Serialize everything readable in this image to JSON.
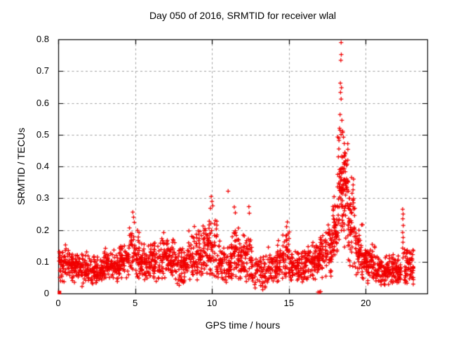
{
  "colors": {
    "background": "#ffffff",
    "axis": "#000000",
    "grid": "#a0a0a0",
    "marker": "#f10000",
    "text": "#000000"
  },
  "chart_data": {
    "type": "scatter",
    "title": "Day 050 of 2016, SRMTID for receiver wlal",
    "xlabel": "GPS time / hours",
    "ylabel": "SRMTID / TECUs",
    "xlim": [
      0,
      24
    ],
    "ylim": [
      0,
      0.8
    ],
    "grid": true,
    "legend": "none",
    "marker": {
      "shape": "plus",
      "size": 7,
      "color": "#f10000"
    },
    "x_ticks": {
      "values": [
        0,
        5,
        10,
        15,
        20
      ],
      "labels": [
        "0",
        "5",
        "10",
        "15",
        "20"
      ]
    },
    "y_ticks": {
      "values": [
        0,
        0.1,
        0.2,
        0.3,
        0.4,
        0.5,
        0.6,
        0.7,
        0.8
      ],
      "labels": [
        "0",
        "0.1",
        "0.2",
        "0.3",
        "0.4",
        "0.5",
        "0.6",
        "0.7",
        "0.8"
      ]
    },
    "grid_lines": {
      "x_values": [
        5,
        10,
        15,
        20
      ],
      "y_values": [
        0.1,
        0.2,
        0.3,
        0.4,
        0.5,
        0.6,
        0.7
      ],
      "style": "dashed"
    },
    "origin_marker": {
      "shape": "filled-square",
      "x": 0.08,
      "y": 0.003
    },
    "notable_points": [
      [
        18.4,
        0.79
      ],
      [
        18.41,
        0.752
      ],
      [
        18.38,
        0.734
      ],
      [
        18.35,
        0.662
      ],
      [
        18.42,
        0.648
      ],
      [
        18.36,
        0.633
      ],
      [
        18.4,
        0.612
      ],
      [
        18.33,
        0.563
      ],
      [
        18.45,
        0.545
      ],
      [
        18.3,
        0.52
      ],
      [
        18.5,
        0.507
      ],
      [
        18.55,
        0.492
      ],
      [
        18.6,
        0.472
      ],
      [
        18.25,
        0.455
      ],
      [
        18.65,
        0.443
      ],
      [
        18.22,
        0.43
      ],
      [
        18.7,
        0.418
      ],
      [
        9.95,
        0.305
      ],
      [
        10.0,
        0.29
      ],
      [
        10.05,
        0.276
      ],
      [
        9.9,
        0.268
      ],
      [
        11.05,
        0.322
      ],
      [
        11.45,
        0.272
      ],
      [
        11.52,
        0.254
      ],
      [
        12.4,
        0.273
      ],
      [
        12.43,
        0.253
      ],
      [
        4.85,
        0.256
      ],
      [
        4.9,
        0.24
      ],
      [
        4.95,
        0.224
      ],
      [
        14.9,
        0.225
      ],
      [
        14.85,
        0.21
      ],
      [
        22.4,
        0.265
      ],
      [
        22.43,
        0.25
      ],
      [
        22.41,
        0.235
      ],
      [
        22.44,
        0.214
      ],
      [
        22.4,
        0.192
      ],
      [
        22.43,
        0.176
      ],
      [
        22.42,
        0.161
      ],
      [
        22.4,
        0.143
      ],
      [
        22.45,
        0.126
      ],
      [
        22.42,
        0.112
      ],
      [
        16.9,
        0.004
      ],
      [
        17.0,
        0.004
      ],
      [
        17.06,
        0.006
      ],
      [
        1.55,
        0.022
      ],
      [
        1.62,
        0.033
      ],
      [
        13.3,
        0.012
      ],
      [
        13.45,
        0.018
      ]
    ],
    "density_bands": {
      "columns": [
        "x_start",
        "x_end",
        "n_points",
        "y_center",
        "y_spread"
      ],
      "rows": [
        [
          0.05,
          1.0,
          95,
          0.095,
          0.032
        ],
        [
          1.0,
          2.0,
          95,
          0.082,
          0.027
        ],
        [
          2.0,
          3.0,
          95,
          0.072,
          0.026
        ],
        [
          3.0,
          4.0,
          95,
          0.09,
          0.03
        ],
        [
          4.0,
          4.6,
          55,
          0.105,
          0.036
        ],
        [
          4.6,
          5.3,
          65,
          0.125,
          0.048
        ],
        [
          5.3,
          6.0,
          65,
          0.095,
          0.034
        ],
        [
          6.0,
          6.6,
          55,
          0.105,
          0.04
        ],
        [
          6.6,
          7.6,
          95,
          0.115,
          0.042
        ],
        [
          7.6,
          8.4,
          75,
          0.092,
          0.04
        ],
        [
          8.4,
          9.4,
          95,
          0.125,
          0.048
        ],
        [
          9.4,
          10.35,
          90,
          0.15,
          0.058
        ],
        [
          10.35,
          11.25,
          80,
          0.095,
          0.04
        ],
        [
          11.25,
          11.8,
          55,
          0.125,
          0.05
        ],
        [
          11.8,
          12.6,
          75,
          0.11,
          0.046
        ],
        [
          12.6,
          13.6,
          65,
          0.065,
          0.03
        ],
        [
          13.6,
          14.3,
          60,
          0.09,
          0.036
        ],
        [
          14.3,
          15.1,
          70,
          0.11,
          0.045
        ],
        [
          15.1,
          16.2,
          100,
          0.085,
          0.032
        ],
        [
          16.2,
          17.0,
          75,
          0.1,
          0.036
        ],
        [
          17.0,
          17.8,
          75,
          0.13,
          0.05
        ],
        [
          17.8,
          18.15,
          50,
          0.21,
          0.07
        ],
        [
          18.15,
          18.85,
          115,
          0.33,
          0.11
        ],
        [
          18.85,
          19.3,
          60,
          0.22,
          0.08
        ],
        [
          19.3,
          19.8,
          55,
          0.13,
          0.05
        ],
        [
          19.8,
          20.6,
          80,
          0.095,
          0.036
        ],
        [
          20.6,
          22.3,
          170,
          0.075,
          0.03
        ],
        [
          22.5,
          23.1,
          65,
          0.08,
          0.033
        ]
      ]
    },
    "seed": 20160250
  }
}
